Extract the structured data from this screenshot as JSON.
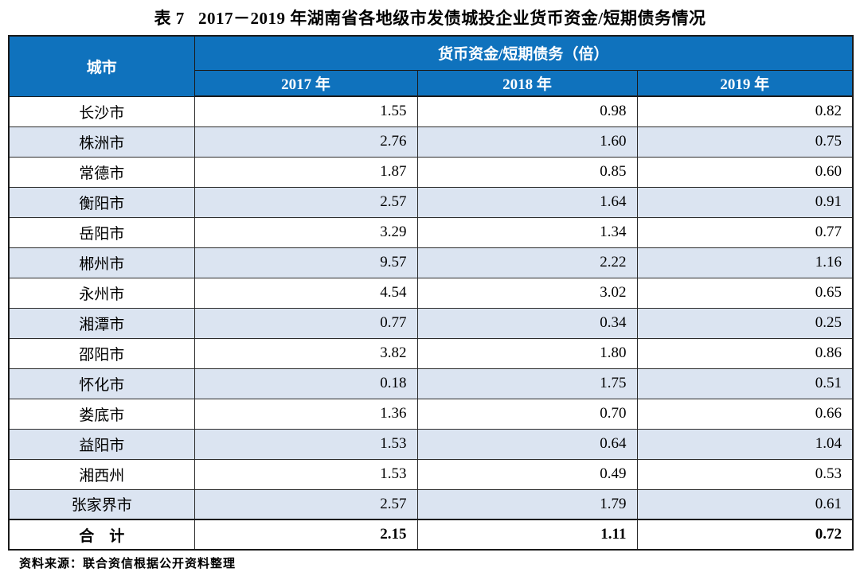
{
  "title": "表 7   2017－2019 年湖南省各地级市发债城投企业货币资金/短期债务情况",
  "source_note": "资料来源：联合资信根据公开资料整理",
  "colors": {
    "header_bg": "#0f72bd",
    "header_text": "#ffffff",
    "stripe_bg": "#dbe4f1",
    "border": "#1a1a1a"
  },
  "chart_data": {
    "type": "table",
    "title": "表 7 2017－2019 年湖南省各地级市发债城投企业货币资金/短期债务情况",
    "group_header": "货币资金/短期债务（倍）",
    "columns": [
      "城市",
      "2017 年",
      "2018 年",
      "2019 年"
    ],
    "rows": [
      [
        "长沙市",
        1.55,
        0.98,
        0.82
      ],
      [
        "株洲市",
        2.76,
        1.6,
        0.75
      ],
      [
        "常德市",
        1.87,
        0.85,
        0.6
      ],
      [
        "衡阳市",
        2.57,
        1.64,
        0.91
      ],
      [
        "岳阳市",
        3.29,
        1.34,
        0.77
      ],
      [
        "郴州市",
        9.57,
        2.22,
        1.16
      ],
      [
        "永州市",
        4.54,
        3.02,
        0.65
      ],
      [
        "湘潭市",
        0.77,
        0.34,
        0.25
      ],
      [
        "邵阳市",
        3.82,
        1.8,
        0.86
      ],
      [
        "怀化市",
        0.18,
        1.75,
        0.51
      ],
      [
        "娄底市",
        1.36,
        0.7,
        0.66
      ],
      [
        "益阳市",
        1.53,
        0.64,
        1.04
      ],
      [
        "湘西州",
        1.53,
        0.49,
        0.53
      ],
      [
        "张家界市",
        2.57,
        1.79,
        0.61
      ]
    ],
    "total_row": [
      "合　计",
      2.15,
      1.11,
      0.72
    ]
  },
  "table": {
    "col_city": "城市",
    "group_header": "货币资金/短期债务（倍）",
    "year_cols": [
      "2017 年",
      "2018 年",
      "2019 年"
    ],
    "rows": [
      {
        "city": "长沙市",
        "y2017": "1.55",
        "y2018": "0.98",
        "y2019": "0.82"
      },
      {
        "city": "株洲市",
        "y2017": "2.76",
        "y2018": "1.60",
        "y2019": "0.75"
      },
      {
        "city": "常德市",
        "y2017": "1.87",
        "y2018": "0.85",
        "y2019": "0.60"
      },
      {
        "city": "衡阳市",
        "y2017": "2.57",
        "y2018": "1.64",
        "y2019": "0.91"
      },
      {
        "city": "岳阳市",
        "y2017": "3.29",
        "y2018": "1.34",
        "y2019": "0.77"
      },
      {
        "city": "郴州市",
        "y2017": "9.57",
        "y2018": "2.22",
        "y2019": "1.16"
      },
      {
        "city": "永州市",
        "y2017": "4.54",
        "y2018": "3.02",
        "y2019": "0.65"
      },
      {
        "city": "湘潭市",
        "y2017": "0.77",
        "y2018": "0.34",
        "y2019": "0.25"
      },
      {
        "city": "邵阳市",
        "y2017": "3.82",
        "y2018": "1.80",
        "y2019": "0.86"
      },
      {
        "city": "怀化市",
        "y2017": "0.18",
        "y2018": "1.75",
        "y2019": "0.51"
      },
      {
        "city": "娄底市",
        "y2017": "1.36",
        "y2018": "0.70",
        "y2019": "0.66"
      },
      {
        "city": "益阳市",
        "y2017": "1.53",
        "y2018": "0.64",
        "y2019": "1.04"
      },
      {
        "city": "湘西州",
        "y2017": "1.53",
        "y2018": "0.49",
        "y2019": "0.53"
      },
      {
        "city": "张家界市",
        "y2017": "2.57",
        "y2018": "1.79",
        "y2019": "0.61"
      }
    ],
    "total": {
      "city": "合　计",
      "y2017": "2.15",
      "y2018": "1.11",
      "y2019": "0.72"
    }
  }
}
